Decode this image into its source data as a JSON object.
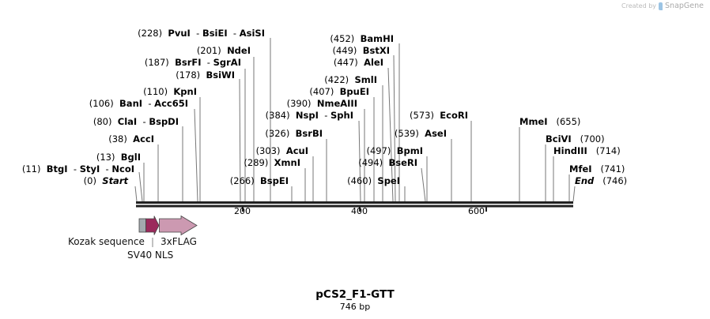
{
  "credit": {
    "prefix": "Created by",
    "brand": "SnapGene"
  },
  "plasmid": {
    "name": "pCS2_F1-GTT",
    "length_label": "746 bp"
  },
  "ruler_ticks": [
    "200",
    "400",
    "600"
  ],
  "sites": [
    {
      "pos": "(228)",
      "names": [
        "PvuI",
        "BsiEI",
        "AsiSI"
      ]
    },
    {
      "pos": "(201)",
      "names": [
        "NdeI"
      ]
    },
    {
      "pos": "(187)",
      "names": [
        "BsrFI",
        "SgrAI"
      ]
    },
    {
      "pos": "(178)",
      "names": [
        "BsiWI"
      ]
    },
    {
      "pos": "(110)",
      "names": [
        "KpnI"
      ]
    },
    {
      "pos": "(106)",
      "names": [
        "BanI",
        "Acc65I"
      ]
    },
    {
      "pos": "(80)",
      "names": [
        "ClaI",
        "BspDI"
      ]
    },
    {
      "pos": "(38)",
      "names": [
        "AccI"
      ]
    },
    {
      "pos": "(13)",
      "names": [
        "BglI"
      ]
    },
    {
      "pos": "(11)",
      "names": [
        "BtgI",
        "StyI",
        "NcoI"
      ]
    },
    {
      "pos": "(0)",
      "names": [
        "Start"
      ],
      "italic": true
    },
    {
      "pos": "(266)",
      "names": [
        "BspEI"
      ]
    },
    {
      "pos": "(289)",
      "names": [
        "XmnI"
      ]
    },
    {
      "pos": "(303)",
      "names": [
        "AcuI"
      ]
    },
    {
      "pos": "(326)",
      "names": [
        "BsrBI"
      ]
    },
    {
      "pos": "(384)",
      "names": [
        "NspI",
        "SphI"
      ]
    },
    {
      "pos": "(390)",
      "names": [
        "NmeAIII"
      ]
    },
    {
      "pos": "(407)",
      "names": [
        "BpuEI"
      ]
    },
    {
      "pos": "(422)",
      "names": [
        "SmlI"
      ]
    },
    {
      "pos": "(447)",
      "names": [
        "AleI"
      ]
    },
    {
      "pos": "(449)",
      "names": [
        "BstXI"
      ]
    },
    {
      "pos": "(452)",
      "names": [
        "BamHI"
      ]
    },
    {
      "pos": "(460)",
      "names": [
        "SpeI"
      ]
    },
    {
      "pos": "(494)",
      "names": [
        "BseRI"
      ]
    },
    {
      "pos": "(497)",
      "names": [
        "BpmI"
      ]
    },
    {
      "pos": "(539)",
      "names": [
        "AseI"
      ]
    },
    {
      "pos": "(573)",
      "names": [
        "EcoRI"
      ]
    },
    {
      "pos": "(655)",
      "names": [
        "MmeI"
      ]
    },
    {
      "pos": "(700)",
      "names": [
        "BciVI"
      ]
    },
    {
      "pos": "(714)",
      "names": [
        "HindIII"
      ]
    },
    {
      "pos": "(741)",
      "names": [
        "MfeI"
      ]
    },
    {
      "pos": "(746)",
      "names": [
        "End"
      ],
      "italic": true
    }
  ],
  "features": [
    {
      "name": "Kozak sequence",
      "color": "#a3a9ae"
    },
    {
      "name": "SV40 NLS",
      "color": "#9b2a5c"
    },
    {
      "name": "3xFLAG",
      "color": "#cc99b1"
    }
  ],
  "colors": {
    "site_line": "#777777",
    "backbone": "#222222"
  }
}
